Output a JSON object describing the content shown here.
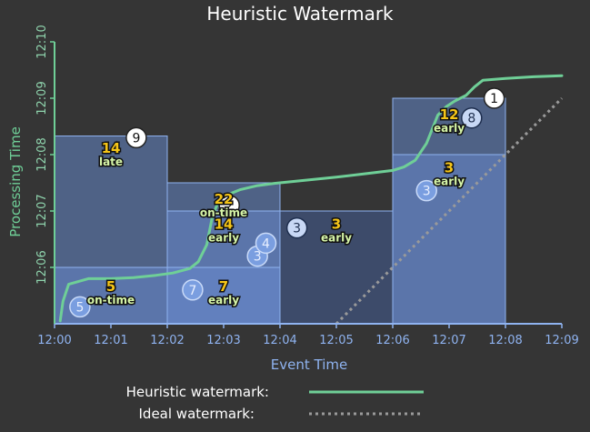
{
  "title": "Heuristic Watermark",
  "chart_data": {
    "type": "diagram",
    "title": "Heuristic Watermark",
    "xlabel": "Event Time",
    "ylabel": "Processing Time",
    "x_ticks": [
      "12:00",
      "12:01",
      "12:02",
      "12:03",
      "12:04",
      "12:05",
      "12:06",
      "12:07",
      "12:08",
      "12:09"
    ],
    "y_ticks": [
      "12:06",
      "12:07",
      "12:08",
      "12:09",
      "12:10"
    ],
    "x_range": [
      0,
      9
    ],
    "y_range": [
      5.0,
      10.0
    ],
    "windows": [
      {
        "x0": 0,
        "x1": 2,
        "y_top": 8.33,
        "shade": "light",
        "fills": [
          6.0
        ]
      },
      {
        "x0": 2,
        "x1": 4,
        "y_top": 7.5,
        "shade": "light",
        "fills": [
          7.0,
          6.0
        ]
      },
      {
        "x0": 4,
        "x1": 6,
        "y_top": 7.0,
        "shade": "dark",
        "fills": []
      },
      {
        "x0": 6,
        "x1": 8,
        "y_top": 9.0,
        "shade": "light",
        "fills": [
          8.0
        ]
      }
    ],
    "panes": [
      {
        "x": 1.0,
        "y": 8.0,
        "value": "14",
        "timing": "late"
      },
      {
        "x": 1.0,
        "y": 5.55,
        "value": "5",
        "timing": "on-time"
      },
      {
        "x": 3.0,
        "y": 7.1,
        "value": "22",
        "timing": "on-time"
      },
      {
        "x": 3.0,
        "y": 6.65,
        "value": "14",
        "timing": "early"
      },
      {
        "x": 3.0,
        "y": 5.55,
        "value": "7",
        "timing": "early"
      },
      {
        "x": 5.0,
        "y": 6.65,
        "value": "3",
        "timing": "early"
      },
      {
        "x": 7.0,
        "y": 7.65,
        "value": "3",
        "timing": "early"
      },
      {
        "x": 7.0,
        "y": 8.6,
        "value": "12",
        "timing": "early"
      }
    ],
    "elements": [
      {
        "x": 0.45,
        "y": 5.3,
        "value": "5",
        "style": "blue"
      },
      {
        "x": 1.45,
        "y": 8.3,
        "value": "9",
        "style": "white"
      },
      {
        "x": 2.45,
        "y": 5.6,
        "value": "7",
        "style": "blue"
      },
      {
        "x": 3.1,
        "y": 7.1,
        "value": "2",
        "style": "white"
      },
      {
        "x": 3.6,
        "y": 6.2,
        "value": "3",
        "style": "blue"
      },
      {
        "x": 3.75,
        "y": 6.43,
        "value": "4",
        "style": "blue"
      },
      {
        "x": 4.3,
        "y": 6.7,
        "value": "3",
        "style": "pale"
      },
      {
        "x": 6.6,
        "y": 7.36,
        "value": "3",
        "style": "blue"
      },
      {
        "x": 7.4,
        "y": 8.65,
        "value": "8",
        "style": "pale"
      },
      {
        "x": 7.8,
        "y": 9.0,
        "value": "1",
        "style": "white"
      }
    ],
    "heuristic_watermark": {
      "x": [
        0.1,
        0.15,
        0.25,
        0.6,
        1.0,
        1.4,
        1.8,
        2.1,
        2.4,
        2.55,
        2.7,
        2.8,
        2.9,
        3.1,
        3.3,
        3.6,
        3.9,
        4.0,
        4.5,
        5.0,
        5.5,
        6.0,
        6.2,
        6.4,
        6.6,
        6.8,
        6.95,
        7.1,
        7.3,
        7.45,
        7.6,
        8.0,
        8.5,
        9.0
      ],
      "y": [
        5.05,
        5.4,
        5.7,
        5.8,
        5.8,
        5.82,
        5.86,
        5.9,
        5.98,
        6.1,
        6.4,
        6.9,
        7.15,
        7.3,
        7.38,
        7.45,
        7.49,
        7.5,
        7.55,
        7.6,
        7.66,
        7.72,
        7.78,
        7.9,
        8.2,
        8.7,
        8.85,
        8.95,
        9.05,
        9.2,
        9.32,
        9.35,
        9.38,
        9.4
      ]
    },
    "ideal_watermark": {
      "x": [
        5.0,
        9.0
      ],
      "y": [
        5.0,
        9.0
      ]
    },
    "colors": {
      "background": "#353535",
      "heuristic": "#6fcf97",
      "ideal": "#9a9a9a",
      "window_light": "#6a8fd8",
      "window_dark": "#3e4f73",
      "window_border": "#8fb3f0"
    }
  },
  "legend": [
    {
      "label": "Heuristic watermark:",
      "style": "solid"
    },
    {
      "label": "Ideal watermark:",
      "style": "dotted"
    }
  ]
}
